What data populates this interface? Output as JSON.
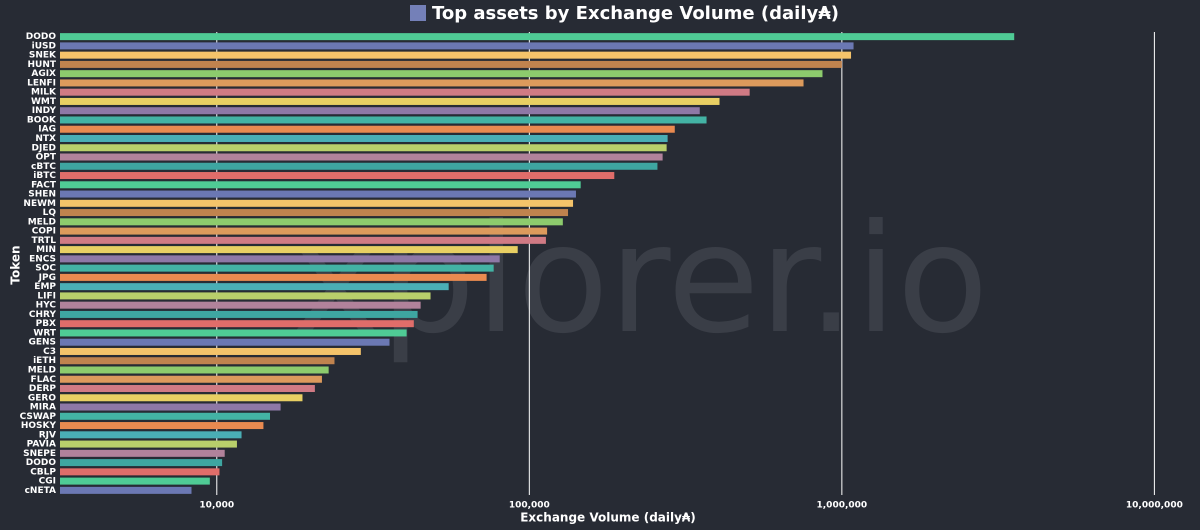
{
  "chart_data": {
    "type": "bar",
    "orientation": "horizontal",
    "title": "Top assets by Exchange Volume (daily₳)",
    "legend_color": "#7480b8",
    "watermark": "xplorer.io",
    "x_label": "Exchange Volume (daily₳)",
    "y_label": "Token",
    "x_scale": "log",
    "grid": true,
    "categories": [
      "DODO",
      "iUSD",
      "SNEK",
      "HUNT",
      "AGIX",
      "LENFI",
      "MILK",
      "WMT",
      "INDY",
      "BOOK",
      "IAG",
      "NTX",
      "DJED",
      "OPT",
      "cBTC",
      "iBTC",
      "FACT",
      "SHEN",
      "NEWM",
      "LQ",
      "MELD",
      "COPI",
      "TRTL",
      "MIN",
      "ENCS",
      "SOC",
      "JPG",
      "EMP",
      "LIFI",
      "HYC",
      "CHRY",
      "PBX",
      "WRT",
      "GENS",
      "C3",
      "iETH",
      "MELD",
      "FLAC",
      "DERP",
      "GERO",
      "MIRA",
      "CSWAP",
      "HOSKY",
      "RJV",
      "PAVIA",
      "SNEPE",
      "DODO",
      "CBLP",
      "CGI",
      "cNETA"
    ],
    "values": [
      3560000,
      1090000,
      1070000,
      1000000,
      867000,
      754000,
      507000,
      406000,
      351000,
      369000,
      292000,
      277000,
      275000,
      267000,
      257000,
      187000,
      146000,
      141000,
      138000,
      133000,
      128000,
      114000,
      113000,
      91800,
      80400,
      76900,
      73000,
      55200,
      48300,
      44900,
      43900,
      42700,
      40500,
      35700,
      28900,
      23800,
      22800,
      21700,
      20600,
      18800,
      16000,
      14800,
      14100,
      12000,
      11600,
      10600,
      10400,
      10200,
      9500,
      8300
    ],
    "palette": [
      "#4fcb95",
      "#6b78b3",
      "#f4c36a",
      "#c0834e",
      "#8dcb6d",
      "#dc9a5c",
      "#d07a84",
      "#e8cf63",
      "#8e78a6",
      "#43b3a4",
      "#e98a50",
      "#4aaeb5",
      "#b9cf6b",
      "#b1829b",
      "#3ea6a1",
      "#e06d6a"
    ],
    "xlim": [
      3150,
      13000000
    ],
    "xticks": [
      {
        "value": 10000,
        "label": "10,000"
      },
      {
        "value": 100000,
        "label": "100,000"
      },
      {
        "value": 1000000,
        "label": "1,000,000"
      },
      {
        "value": 10000000,
        "label": "10,000,000"
      }
    ]
  }
}
